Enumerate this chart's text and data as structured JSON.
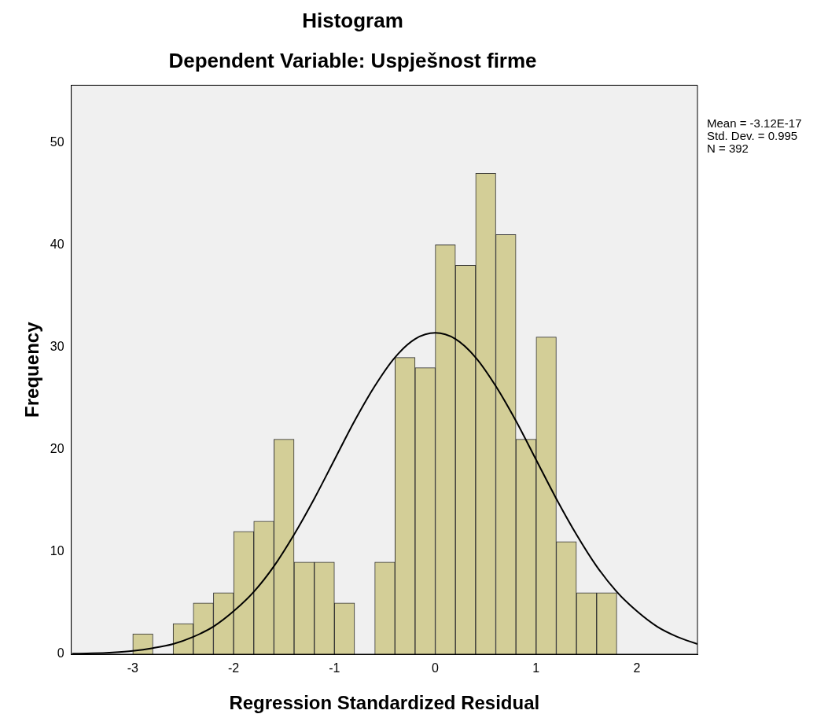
{
  "chart_data": {
    "type": "histogram",
    "title": "Histogram",
    "subtitle": "Dependent Variable: Uspješnost firme",
    "xlabel": "Regression Standardized Residual",
    "ylabel": "Frequency",
    "bins": [
      -3.0,
      -2.8,
      -2.6,
      -2.4,
      -2.2,
      -2.0,
      -1.8,
      -1.6,
      -1.4,
      -1.2,
      -1.0,
      -0.8,
      -0.6,
      -0.4,
      -0.2,
      0,
      0.2,
      0.4,
      0.6,
      0.8,
      1.0,
      1.2,
      1.4,
      1.6,
      1.8
    ],
    "values": [
      2,
      0,
      3,
      5,
      6,
      12,
      13,
      21,
      9,
      9,
      5,
      0,
      9,
      29,
      28,
      40,
      38,
      47,
      41,
      21,
      31,
      11,
      6,
      6
    ],
    "color": "#d3ce97",
    "series": [
      {
        "type": "line",
        "color": "#000000",
        "x": [
          -3.6,
          -3.4,
          -3.2,
          -3.0,
          -2.8,
          -2.6,
          -2.4,
          -2.2,
          -2.0,
          -1.8,
          -1.6,
          -1.4,
          -1.2,
          -1.0,
          -0.8,
          -0.6,
          -0.4,
          -0.2,
          0,
          0.2,
          0.4,
          0.6,
          0.8,
          1.0,
          1.2,
          1.4,
          1.6,
          1.8,
          2.0,
          2.2,
          2.4,
          2.6
        ],
        "values": [
          0.05,
          0.09,
          0.18,
          0.33,
          0.6,
          1.0,
          1.7,
          2.7,
          4.2,
          6.1,
          8.6,
          11.7,
          15.2,
          19.0,
          22.8,
          26.2,
          29.0,
          30.8,
          31.4,
          30.8,
          29.0,
          26.2,
          22.8,
          19.0,
          15.2,
          11.7,
          8.6,
          6.1,
          4.2,
          2.7,
          1.7,
          1.0
        ]
      }
    ],
    "xlim": [
      -3.61,
      2.6
    ],
    "xticks": [
      -3,
      -2,
      -1,
      0,
      1,
      2
    ],
    "ylim": [
      0,
      55.6
    ],
    "yticks": [
      0,
      10,
      20,
      30,
      40,
      50
    ],
    "annotations": [
      "Mean = -3.12E-17",
      "Std. Dev. = 0.995",
      "N = 392"
    ],
    "grid": false,
    "legend": false
  }
}
